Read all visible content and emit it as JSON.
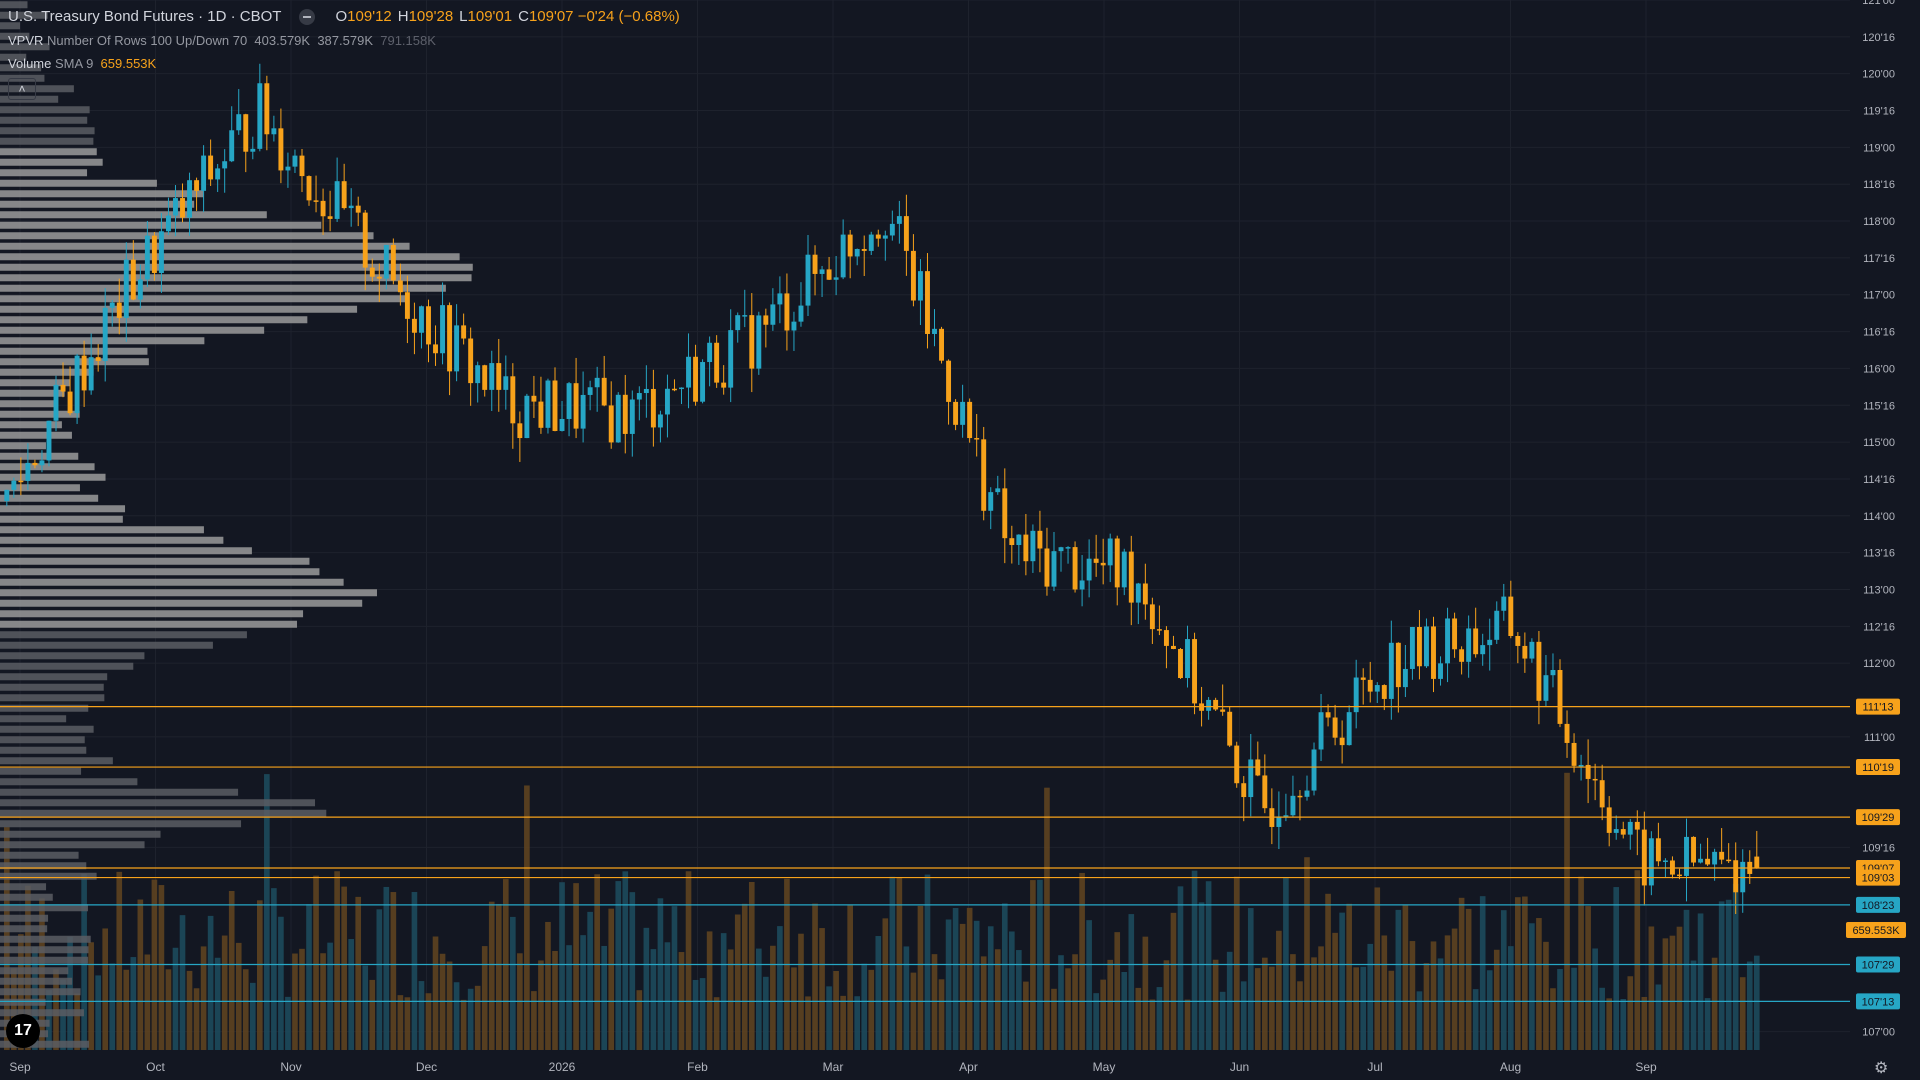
{
  "header": {
    "symbol": "U.S. Treasury Bond Futures · 1D · CBOT",
    "ohlc": [
      {
        "k": "O",
        "v": "109'12"
      },
      {
        "k": "H",
        "v": "109'28"
      },
      {
        "k": "L",
        "v": "109'01"
      },
      {
        "k": "C",
        "v": "109'07"
      }
    ],
    "change": "−0'24 (−0.68%)"
  },
  "vpvr": {
    "name": "VPVR",
    "params": "Number Of Rows 100 Up/Down 70",
    "up": "403.579K",
    "down": "387.579K",
    "total": "791.158K"
  },
  "volume_ind": {
    "name": "Volume",
    "params": "SMA 9",
    "value": "659.553K"
  },
  "collapse_icon": "chevron-up-icon",
  "logo_text": "17",
  "settings_icon": "gear-icon",
  "colors": {
    "background": "#131722",
    "grid": "#1e222d",
    "up": "#26a6c5",
    "down": "#f7a21b",
    "text": "#d1d4dc",
    "axis_text": "#b2b5be",
    "profile": "#9b9b9b",
    "profile_dark": "#5a5d63"
  },
  "chart_data": {
    "type": "candlestick",
    "title": "U.S. Treasury Bond Futures · 1D · CBOT",
    "price_axis": {
      "min": 106.75,
      "max": 121.0,
      "ticks": [
        "121'00",
        "120'16",
        "120'00",
        "119'16",
        "119'00",
        "118'16",
        "118'00",
        "117'16",
        "117'00",
        "116'16",
        "116'00",
        "115'16",
        "115'00",
        "114'16",
        "114'00",
        "113'16",
        "113'00",
        "112'16",
        "112'00",
        "111'00",
        "109'16",
        "107'00"
      ]
    },
    "time_axis": {
      "ticks": [
        "Sep",
        "Oct",
        "Nov",
        "Dec",
        "2026",
        "Feb",
        "Mar",
        "Apr",
        "May",
        "Jun",
        "Jul",
        "Aug",
        "Sep"
      ],
      "grid": true
    },
    "price_levels": [
      {
        "label": "111'13",
        "price": 111.41,
        "color": "#f7a21b"
      },
      {
        "label": "110'19",
        "price": 110.59,
        "color": "#f7a21b"
      },
      {
        "label": "109'29",
        "price": 109.91,
        "color": "#f7a21b"
      },
      {
        "label": "109'07",
        "price": 109.22,
        "color": "#f7a21b"
      },
      {
        "label": "109'03",
        "price": 109.09,
        "color": "#f7a21b"
      },
      {
        "label": "108'23",
        "price": 108.72,
        "color": "#26a6c5"
      },
      {
        "label": "107'29",
        "price": 107.91,
        "color": "#26a6c5"
      },
      {
        "label": "107'13",
        "price": 107.41,
        "color": "#26a6c5"
      }
    ],
    "volume_label": "659.553K",
    "grid": true,
    "key_prices": [
      {
        "date": "Sep",
        "price": 114.2
      },
      {
        "date": "Oct",
        "price": 117.2
      },
      {
        "date": "Oct (late)",
        "price": 119.5
      },
      {
        "date": "Nov",
        "price": 117.3
      },
      {
        "date": "Dec",
        "price": 115.5
      },
      {
        "date": "2026",
        "price": 115.4
      },
      {
        "date": "Feb",
        "price": 116.5
      },
      {
        "date": "Mar",
        "price": 118.2
      },
      {
        "date": "Apr",
        "price": 113.5
      },
      {
        "date": "May",
        "price": 113.2
      },
      {
        "date": "May (late)",
        "price": 110.0
      },
      {
        "date": "Jun",
        "price": 112.0
      },
      {
        "date": "Jul",
        "price": 112.5
      },
      {
        "date": "Aug",
        "price": 109.3
      },
      {
        "date": "Aug (late)",
        "price": 109.2
      }
    ],
    "last": {
      "open": 109.375,
      "high": 109.875,
      "low": 109.03,
      "close": 109.22
    }
  }
}
